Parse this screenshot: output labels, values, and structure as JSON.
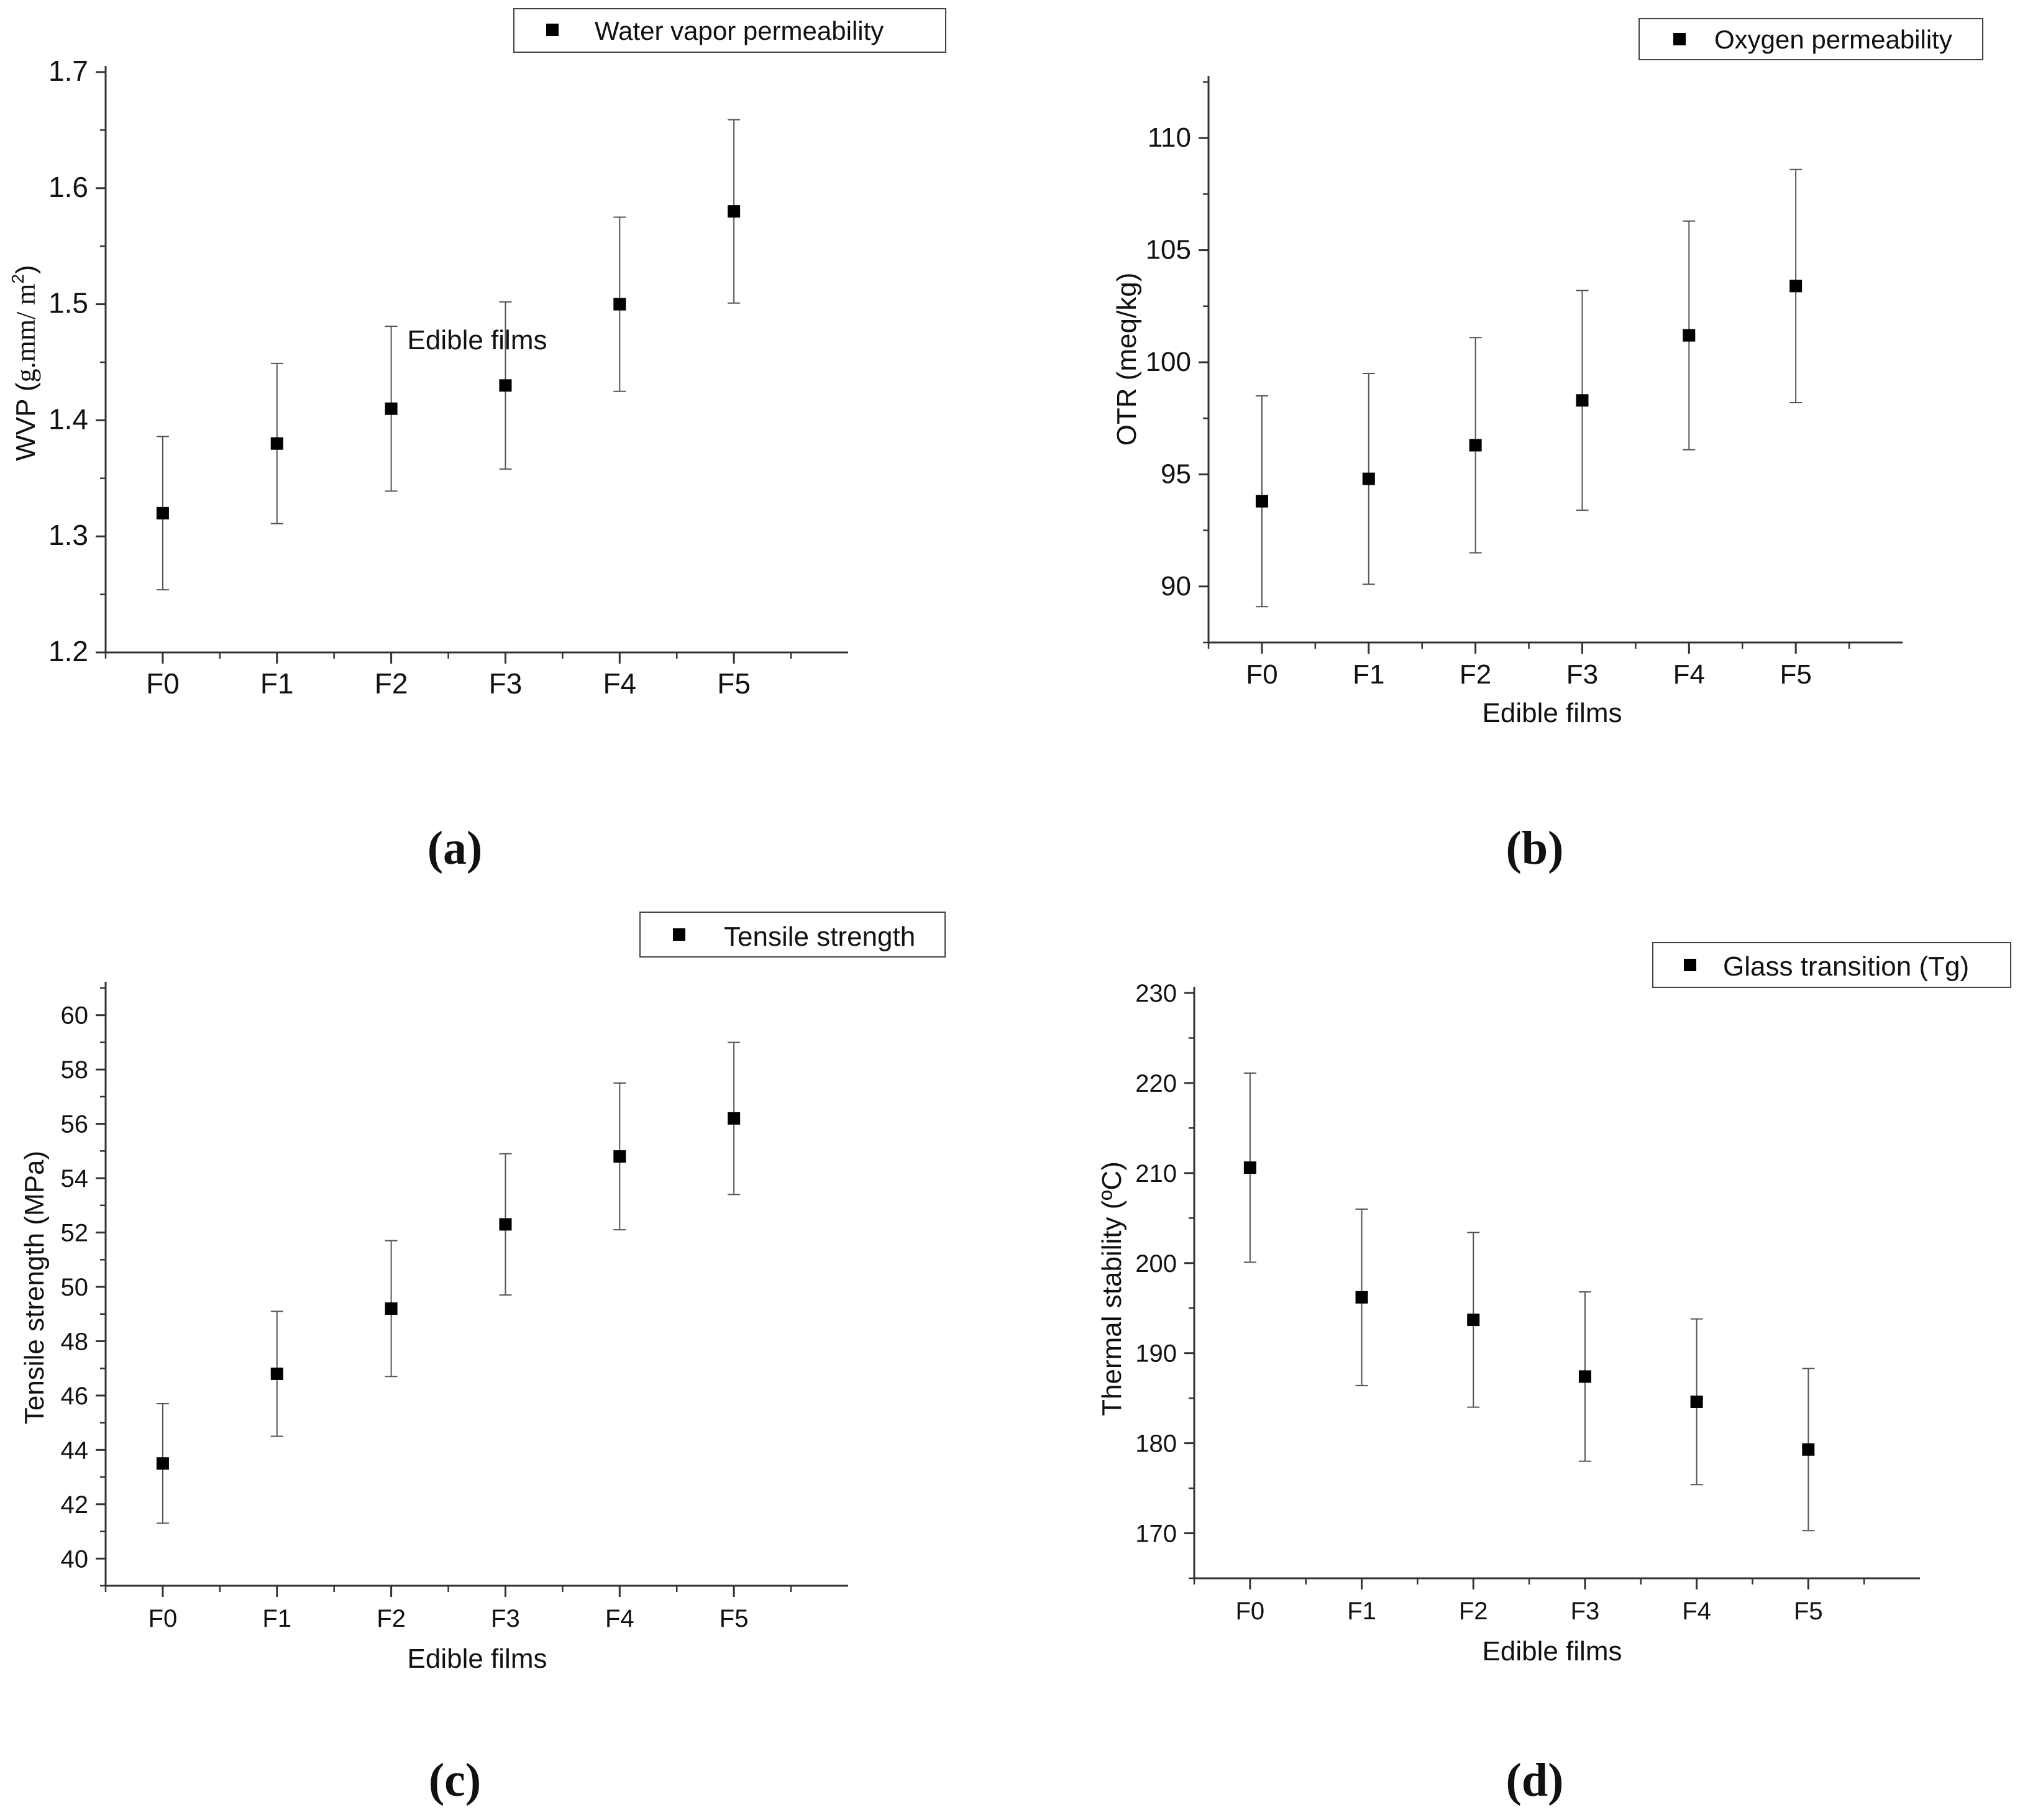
{
  "figure": {
    "panel_labels": [
      "(a)",
      "(b)",
      "(c)",
      "(d)"
    ]
  },
  "chart_data": [
    {
      "type": "scatter",
      "panel": "(a)",
      "title": "",
      "legend": "Water vapor permeability",
      "legend_position": "top-right",
      "xlabel": "Edible films",
      "ylabel": "WVP (g.mm/ m2)",
      "ylabel_parts": {
        "main": "WVP (",
        "units": "g.mm/ m",
        "superscript": "2",
        "close": ")"
      },
      "categories": [
        "F0",
        "F1",
        "F2",
        "F3",
        "F4",
        "F5"
      ],
      "values": [
        1.32,
        1.38,
        1.41,
        1.43,
        1.5,
        1.58
      ],
      "errors": [
        0.066,
        0.069,
        0.071,
        0.072,
        0.075,
        0.079
      ],
      "ylim": [
        1.2,
        1.7
      ],
      "yticks": [
        1.2,
        1.3,
        1.4,
        1.5,
        1.6,
        1.7
      ],
      "ytick_labels": [
        "1.2",
        "1.3",
        "1.4",
        "1.5",
        "1.6",
        "1.7"
      ],
      "grid": false
    },
    {
      "type": "scatter",
      "panel": "(b)",
      "title": "",
      "legend": "Oxygen permeability",
      "legend_position": "top-right",
      "xlabel": "Edible films",
      "ylabel": "OTR (meq/kg)",
      "categories": [
        "F0",
        "F1",
        "F2",
        "F3",
        "F4",
        "F5"
      ],
      "values": [
        93.8,
        94.8,
        96.3,
        98.3,
        101.2,
        103.4
      ],
      "errors": [
        4.7,
        4.7,
        4.8,
        4.9,
        5.1,
        5.2
      ],
      "ylim": [
        87.5,
        112.5
      ],
      "yticks": [
        90,
        95,
        100,
        105,
        110
      ],
      "ytick_labels": [
        "90",
        "95",
        "100",
        "105",
        "110"
      ],
      "grid": false
    },
    {
      "type": "scatter",
      "panel": "(c)",
      "title": "",
      "legend": "Tensile strength",
      "legend_position": "top-right",
      "xlabel": "Edible films",
      "ylabel": "Tensile strength (MPa)",
      "categories": [
        "F0",
        "F1",
        "F2",
        "F3",
        "F4",
        "F5"
      ],
      "values": [
        43.5,
        46.8,
        49.2,
        52.3,
        54.8,
        56.2
      ],
      "errors": [
        2.2,
        2.3,
        2.5,
        2.6,
        2.7,
        2.8
      ],
      "ylim": [
        39,
        61
      ],
      "yticks": [
        40,
        42,
        44,
        46,
        48,
        50,
        52,
        54,
        56,
        58,
        60
      ],
      "ytick_labels": [
        "40",
        "42",
        "44",
        "46",
        "48",
        "50",
        "52",
        "54",
        "56",
        "58",
        "60"
      ],
      "grid": false
    },
    {
      "type": "scatter",
      "panel": "(d)",
      "title": "",
      "legend": "Glass transition (Tg)",
      "legend_position": "top-right",
      "xlabel": "Edible films",
      "ylabel": "Thermal stability (ºC)",
      "categories": [
        "F0",
        "F1",
        "F2",
        "F3",
        "F4",
        "F5"
      ],
      "values": [
        210.6,
        196.2,
        193.7,
        187.4,
        184.6,
        179.3
      ],
      "errors": [
        10.5,
        9.8,
        9.7,
        9.4,
        9.2,
        9.0
      ],
      "ylim": [
        165,
        230
      ],
      "yticks": [
        170,
        180,
        190,
        200,
        210,
        220,
        230
      ],
      "ytick_labels": [
        "170",
        "180",
        "190",
        "200",
        "210",
        "220",
        "230"
      ],
      "grid": false
    }
  ]
}
